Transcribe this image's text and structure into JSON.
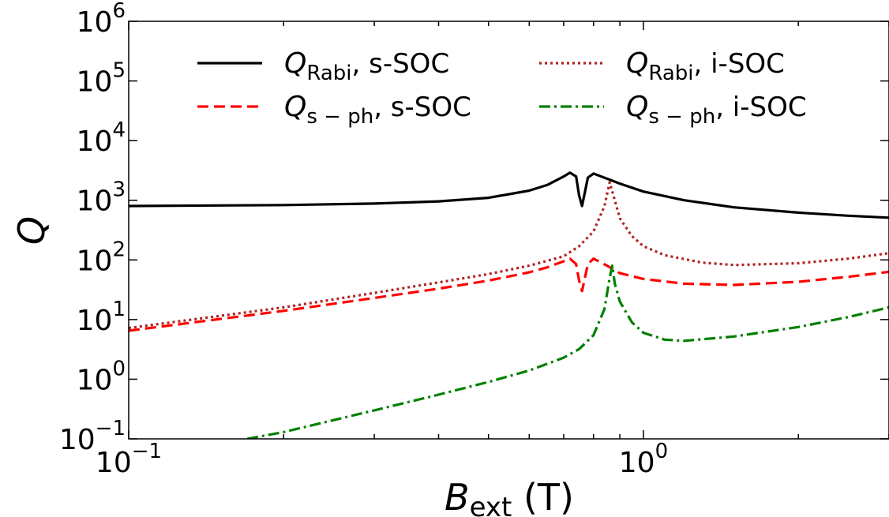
{
  "chart_data": {
    "type": "line",
    "xscale": "log",
    "yscale": "log",
    "xlim": [
      0.1,
      3.0
    ],
    "ylim": [
      0.1,
      1000000
    ],
    "grid": false,
    "legend_location": "top",
    "legend_columns": 2,
    "xlabel": {
      "main": "B",
      "sub": "ext",
      "suffix": " (T)"
    },
    "ylabel": {
      "main": "Q",
      "sub": ""
    },
    "x_ticks": [
      {
        "value": 0.1,
        "base": "10",
        "exp": "−1"
      },
      {
        "value": 1,
        "base": "10",
        "exp": "0"
      }
    ],
    "y_ticks": [
      {
        "value": 0.1,
        "base": "10",
        "exp": "−1"
      },
      {
        "value": 1,
        "base": "10",
        "exp": "0"
      },
      {
        "value": 10,
        "base": "10",
        "exp": "1"
      },
      {
        "value": 100,
        "base": "10",
        "exp": "2"
      },
      {
        "value": 1000,
        "base": "10",
        "exp": "3"
      },
      {
        "value": 10000,
        "base": "10",
        "exp": "4"
      },
      {
        "value": 100000,
        "base": "10",
        "exp": "5"
      },
      {
        "value": 1000000,
        "base": "10",
        "exp": "6"
      }
    ],
    "series": [
      {
        "name": {
          "main": "Q",
          "sub": "Rabi",
          "suffix": ", s-SOC"
        },
        "color": "#000000",
        "style": "solid",
        "x": [
          0.1,
          0.2,
          0.3,
          0.4,
          0.5,
          0.6,
          0.65,
          0.7,
          0.72,
          0.74,
          0.75,
          0.76,
          0.78,
          0.8,
          0.85,
          0.9,
          1.0,
          1.2,
          1.5,
          2.0,
          2.5,
          3.0
        ],
        "y": [
          800,
          830,
          880,
          960,
          1100,
          1450,
          1800,
          2500,
          2900,
          2500,
          1200,
          800,
          2400,
          2800,
          2300,
          1900,
          1400,
          1000,
          760,
          620,
          550,
          510
        ]
      },
      {
        "name": {
          "main": "Q",
          "sub": "Rabi",
          "suffix": ", i-SOC"
        },
        "color": "#b22222",
        "style": "dotted",
        "x": [
          0.1,
          0.2,
          0.3,
          0.4,
          0.5,
          0.6,
          0.7,
          0.75,
          0.8,
          0.84,
          0.86,
          0.88,
          0.9,
          0.95,
          1.0,
          1.1,
          1.3,
          1.5,
          2.0,
          2.5,
          3.0
        ],
        "y": [
          7.2,
          16,
          28,
          42,
          58,
          80,
          115,
          170,
          300,
          800,
          2000,
          1000,
          500,
          250,
          170,
          120,
          90,
          82,
          88,
          105,
          130
        ]
      },
      {
        "name": {
          "main": "Q",
          "sub": "s − ph",
          "suffix": ", s-SOC"
        },
        "color": "#ff0000",
        "style": "dashed",
        "x": [
          0.1,
          0.2,
          0.3,
          0.4,
          0.5,
          0.6,
          0.65,
          0.7,
          0.72,
          0.74,
          0.75,
          0.76,
          0.78,
          0.8,
          0.85,
          0.9,
          1.0,
          1.2,
          1.5,
          2.0,
          2.5,
          3.0
        ],
        "y": [
          6.5,
          14,
          23,
          33,
          45,
          62,
          75,
          95,
          105,
          85,
          45,
          30,
          85,
          105,
          80,
          60,
          48,
          40,
          38,
          43,
          52,
          63
        ]
      },
      {
        "name": {
          "main": "Q",
          "sub": "s − ph",
          "suffix": ", i-SOC"
        },
        "color": "#008000",
        "style": "dashdot",
        "x": [
          0.17,
          0.2,
          0.3,
          0.4,
          0.5,
          0.6,
          0.7,
          0.75,
          0.8,
          0.84,
          0.86,
          0.87,
          0.88,
          0.9,
          0.95,
          1.0,
          1.1,
          1.2,
          1.5,
          2.0,
          2.5,
          3.0
        ],
        "y": [
          0.1,
          0.13,
          0.3,
          0.55,
          0.9,
          1.4,
          2.3,
          3.2,
          5.5,
          15,
          50,
          80,
          40,
          20,
          9,
          6,
          4.6,
          4.4,
          5.2,
          7.5,
          11,
          16
        ]
      }
    ]
  }
}
